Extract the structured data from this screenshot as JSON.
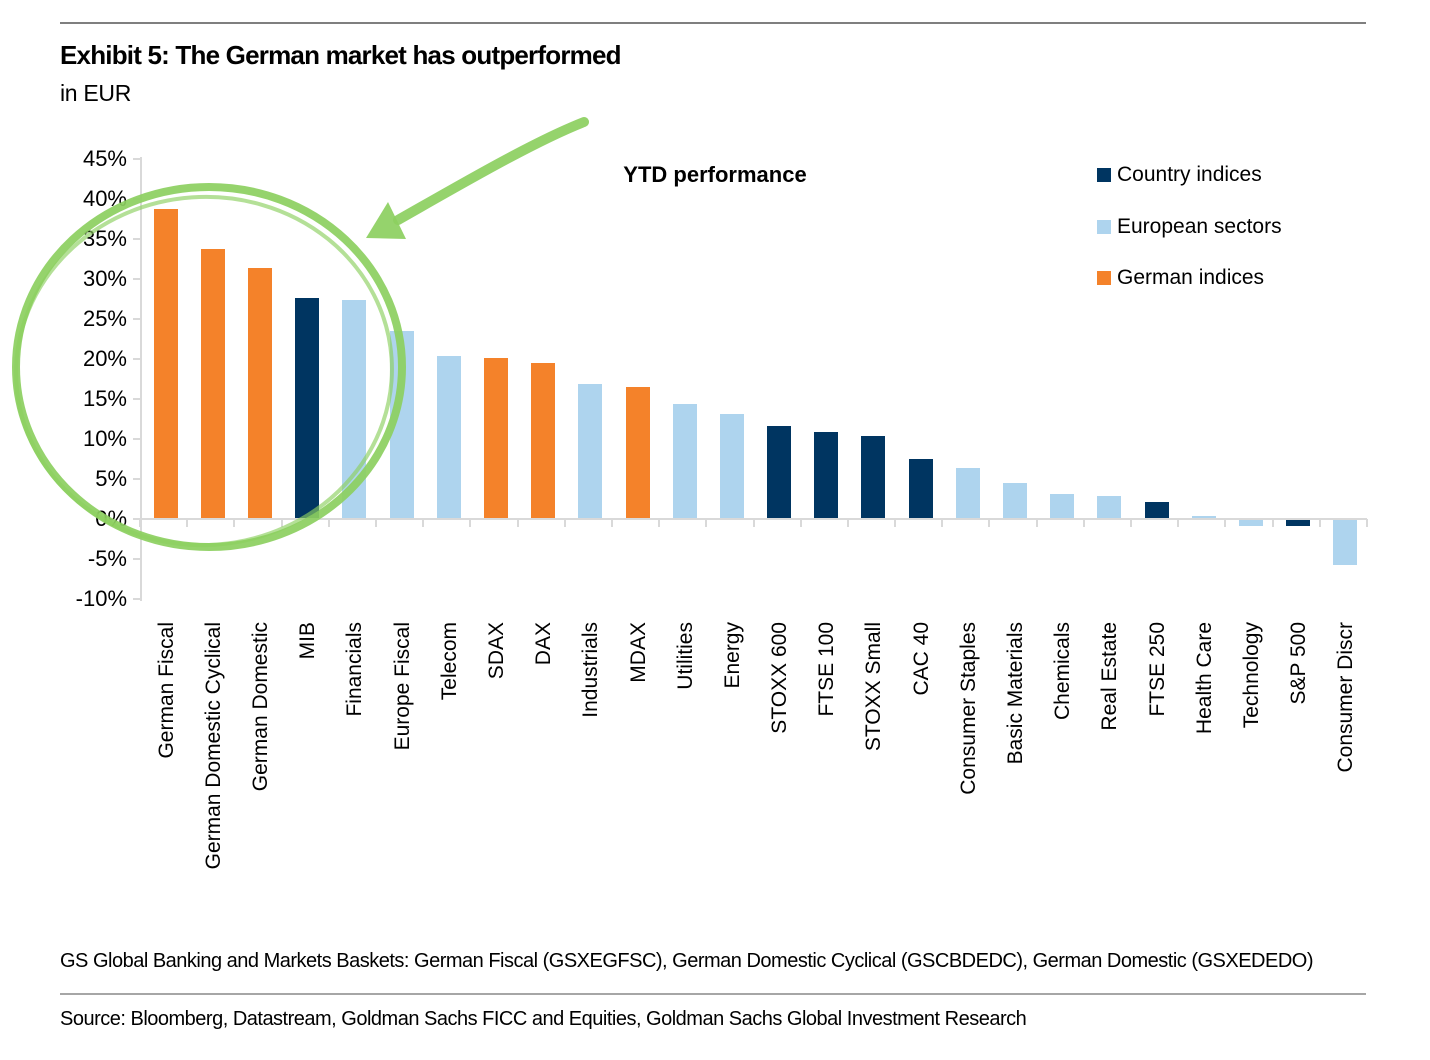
{
  "header": {
    "title": "Exhibit 5: The German market has outperformed",
    "subtitle": "in EUR"
  },
  "chart_data": {
    "type": "bar",
    "title": "YTD performance",
    "ylim": [
      -10,
      45
    ],
    "grid": false,
    "legend_position": "top-right",
    "y_axis": [
      {
        "label": "45%",
        "value": 45
      },
      {
        "label": "40%",
        "value": 40
      },
      {
        "label": "35%",
        "value": 35
      },
      {
        "label": "30%",
        "value": 30
      },
      {
        "label": "25%",
        "value": 25
      },
      {
        "label": "20%",
        "value": 20
      },
      {
        "label": "15%",
        "value": 15
      },
      {
        "label": "10%",
        "value": 10
      },
      {
        "label": "5%",
        "value": 5
      },
      {
        "label": "0%",
        "value": 0
      },
      {
        "label": "-5%",
        "value": -5
      },
      {
        "label": "-10%",
        "value": -10
      }
    ],
    "categories": [
      "German Fiscal",
      "German Domestic Cyclical",
      "German Domestic",
      "MIB",
      "Financials",
      "Europe Fiscal",
      "Telecom",
      "SDAX",
      "DAX",
      "Industrials",
      "MDAX",
      "Utilities",
      "Energy",
      "STOXX 600",
      "FTSE 100",
      "STOXX Small",
      "CAC 40",
      "Consumer Staples",
      "Basic Materials",
      "Chemicals",
      "Real Estate",
      "FTSE 250",
      "Health Care",
      "Technology",
      "S&P 500",
      "Consumer Discr"
    ],
    "values": [
      38.6,
      33.6,
      31.2,
      27.5,
      27.2,
      23.4,
      20.3,
      20.0,
      19.4,
      16.7,
      16.4,
      14.3,
      13.0,
      11.5,
      10.7,
      10.2,
      7.4,
      6.2,
      4.4,
      3.0,
      2.8,
      2.0,
      0.3,
      -0.7,
      -0.8,
      -5.6
    ],
    "groups": [
      "german",
      "german",
      "german",
      "country",
      "sector",
      "sector",
      "sector",
      "german",
      "german",
      "sector",
      "german",
      "sector",
      "sector",
      "country",
      "country",
      "country",
      "country",
      "sector",
      "sector",
      "sector",
      "sector",
      "country",
      "sector",
      "sector",
      "country",
      "sector"
    ],
    "group_colors": {
      "country": "#003561",
      "sector": "#AED4EE",
      "german": "#F4822A"
    },
    "legend": [
      {
        "label": "Country indices",
        "color": "#003561"
      },
      {
        "label": "European sectors",
        "color": "#AED4EE"
      },
      {
        "label": "German indices",
        "color": "#F4822A"
      }
    ],
    "annotation": {
      "color": "#8CCF60",
      "description": "hand-drawn green circle around first four bars with arrow pointing at it"
    }
  },
  "footnote": "GS Global Banking and Markets Baskets: German Fiscal (GSXEGFSC), German Domestic Cyclical (GSCBDEDC), German Domestic (GSXEDEDO)",
  "source": "Source: Bloomberg, Datastream, Goldman Sachs FICC and Equities, Goldman Sachs Global Investment Research"
}
